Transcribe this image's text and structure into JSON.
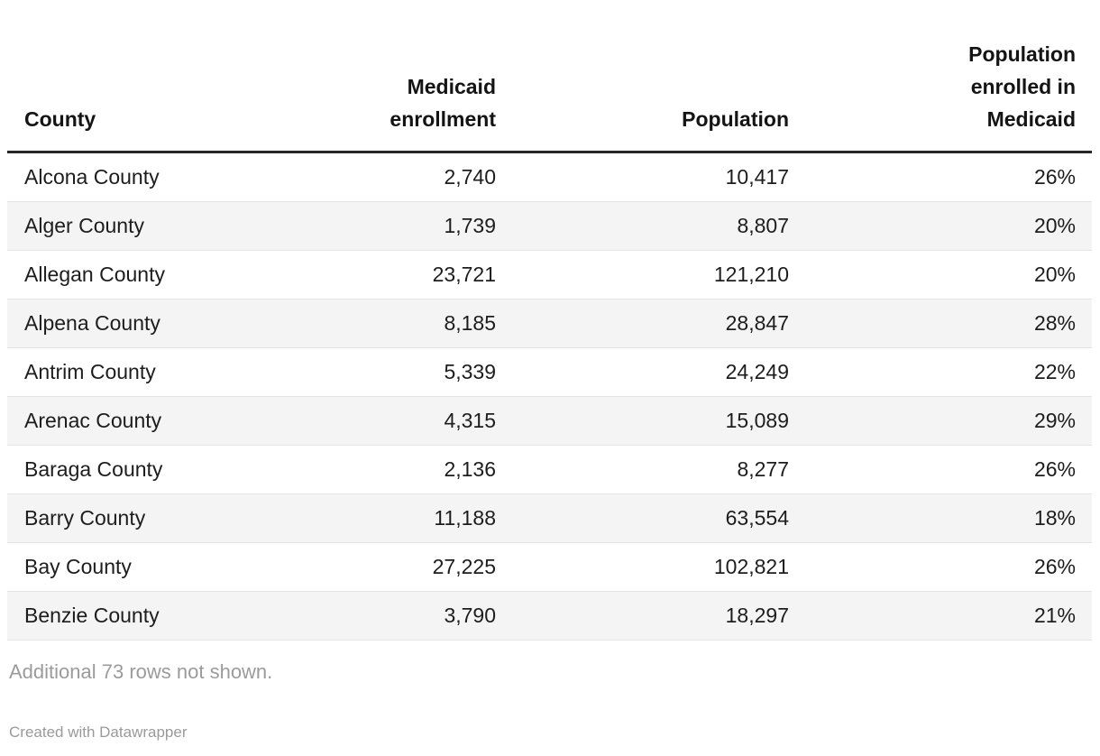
{
  "chart_data": {
    "type": "table",
    "columns": [
      "County",
      "Medicaid enrollment",
      "Population",
      "Population enrolled in Medicaid"
    ],
    "rows": [
      [
        "Alcona County",
        "2,740",
        "10,417",
        "26%"
      ],
      [
        "Alger County",
        "1,739",
        "8,807",
        "20%"
      ],
      [
        "Allegan County",
        "23,721",
        "121,210",
        "20%"
      ],
      [
        "Alpena County",
        "8,185",
        "28,847",
        "28%"
      ],
      [
        "Antrim County",
        "5,339",
        "24,249",
        "22%"
      ],
      [
        "Arenac County",
        "4,315",
        "15,089",
        "29%"
      ],
      [
        "Baraga County",
        "2,136",
        "8,277",
        "26%"
      ],
      [
        "Barry County",
        "11,188",
        "63,554",
        "18%"
      ],
      [
        "Bay County",
        "27,225",
        "102,821",
        "26%"
      ],
      [
        "Benzie County",
        "3,790",
        "18,297",
        "21%"
      ]
    ],
    "layout": {
      "striped_rows": true,
      "column_alignment": [
        "left",
        "right",
        "right",
        "right"
      ]
    }
  },
  "header": {
    "county": "County",
    "medicaid_enrollment": "Medicaid\nenrollment",
    "population": "Population",
    "percent_enrolled": "Population\nenrolled in\nMedicaid"
  },
  "footer": {
    "note": "Additional 73 rows not shown.",
    "attribution": "Created with Datawrapper"
  },
  "colors": {
    "text": "#1d1d1d",
    "muted_text": "#9b9b9b",
    "stripe": "#f4f4f4",
    "row_divider": "#e3e3e3",
    "header_rule": "#262626",
    "background": "#ffffff"
  }
}
